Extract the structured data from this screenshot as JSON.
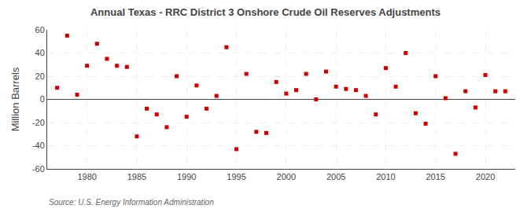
{
  "chart_data": {
    "type": "scatter",
    "title": "Annual Texas - RRC District 3 Onshore Crude Oil Reserves Adjustments",
    "ylabel": "Million Barrels",
    "annotations": [
      "Source: U.S. Energy Information Administration"
    ],
    "x": [
      1977,
      1978,
      1979,
      1980,
      1981,
      1982,
      1983,
      1984,
      1985,
      1986,
      1987,
      1988,
      1989,
      1990,
      1991,
      1992,
      1993,
      1994,
      1995,
      1996,
      1997,
      1998,
      1999,
      2000,
      2001,
      2002,
      2003,
      2004,
      2005,
      2006,
      2007,
      2008,
      2009,
      2010,
      2011,
      2012,
      2013,
      2014,
      2015,
      2016,
      2017,
      2018,
      2019,
      2020,
      2021,
      2022
    ],
    "values": [
      10,
      55,
      4,
      29,
      48,
      35,
      29,
      28,
      -32,
      -8,
      -13,
      -24,
      20,
      -15,
      12,
      -8,
      3,
      45,
      -43,
      22,
      -28,
      -29,
      15,
      5,
      8,
      22,
      0,
      24,
      11,
      9,
      8,
      3,
      -13,
      27,
      11,
      40,
      -12,
      -21,
      20,
      1,
      -47,
      7,
      -7,
      21,
      7,
      7
    ],
    "color": "#cc0000",
    "marker": "square",
    "xlim": [
      1976,
      2023
    ],
    "ylim": [
      -60,
      60
    ],
    "xticks": [
      1980,
      1985,
      1990,
      1995,
      2000,
      2005,
      2010,
      2015,
      2020
    ],
    "yticks": [
      -60,
      -40,
      -20,
      0,
      20,
      40,
      60
    ],
    "grid": true
  }
}
